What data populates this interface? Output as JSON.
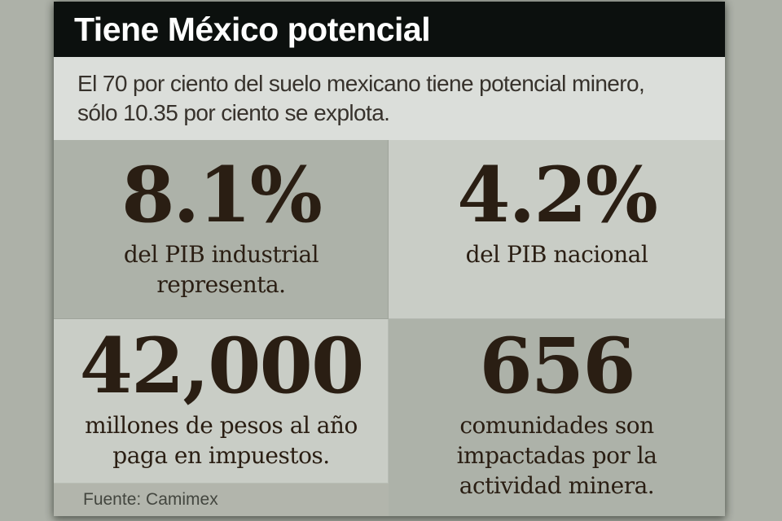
{
  "header": {
    "title": "Tiene México potencial"
  },
  "subtitle": {
    "text": "El 70 por ciento del suelo mexicano tiene potencial minero,\nsólo 10.35 por ciento se explota."
  },
  "stats": [
    {
      "value": "8.1%",
      "label": "del PIB industrial\nrepresenta."
    },
    {
      "value": "4.2%",
      "label": "del PIB nacional"
    },
    {
      "value": "42,000",
      "label": "millones de pesos al año\npaga en impuestos."
    },
    {
      "value": "656",
      "label": "comunidades son\nimpactadas por la\nactividad minera."
    }
  ],
  "source": {
    "text": "Fuente: Camimex"
  },
  "colors": {
    "page_background": "#adb1a8",
    "header_background": "#0c100e",
    "header_text": "#ffffff",
    "subtitle_background": "#dbdeda",
    "box_dark": "#adb2a9",
    "box_light": "#c9cdc6",
    "stat_text": "#2a1e13",
    "source_background": "#b2b5ac",
    "source_text": "#43463f"
  },
  "chart_data": {
    "type": "table",
    "title": "Tiene México potencial",
    "subtitle": "El 70 por ciento del suelo mexicano tiene potencial minero, sólo 10.35 por ciento se explota.",
    "source": "Fuente: Camimex",
    "facts": {
      "suelo_con_potencial_minero_pct": 70,
      "suelo_explotado_pct": 10.35
    },
    "values": [
      {
        "value": 8.1,
        "display": "8.1%",
        "label": "del PIB industrial representa."
      },
      {
        "value": 4.2,
        "display": "4.2%",
        "label": "del PIB nacional"
      },
      {
        "value": 42000,
        "display": "42,000",
        "label": "millones de pesos al año paga en impuestos."
      },
      {
        "value": 656,
        "display": "656",
        "label": "comunidades son impactadas por la actividad minera."
      }
    ]
  }
}
